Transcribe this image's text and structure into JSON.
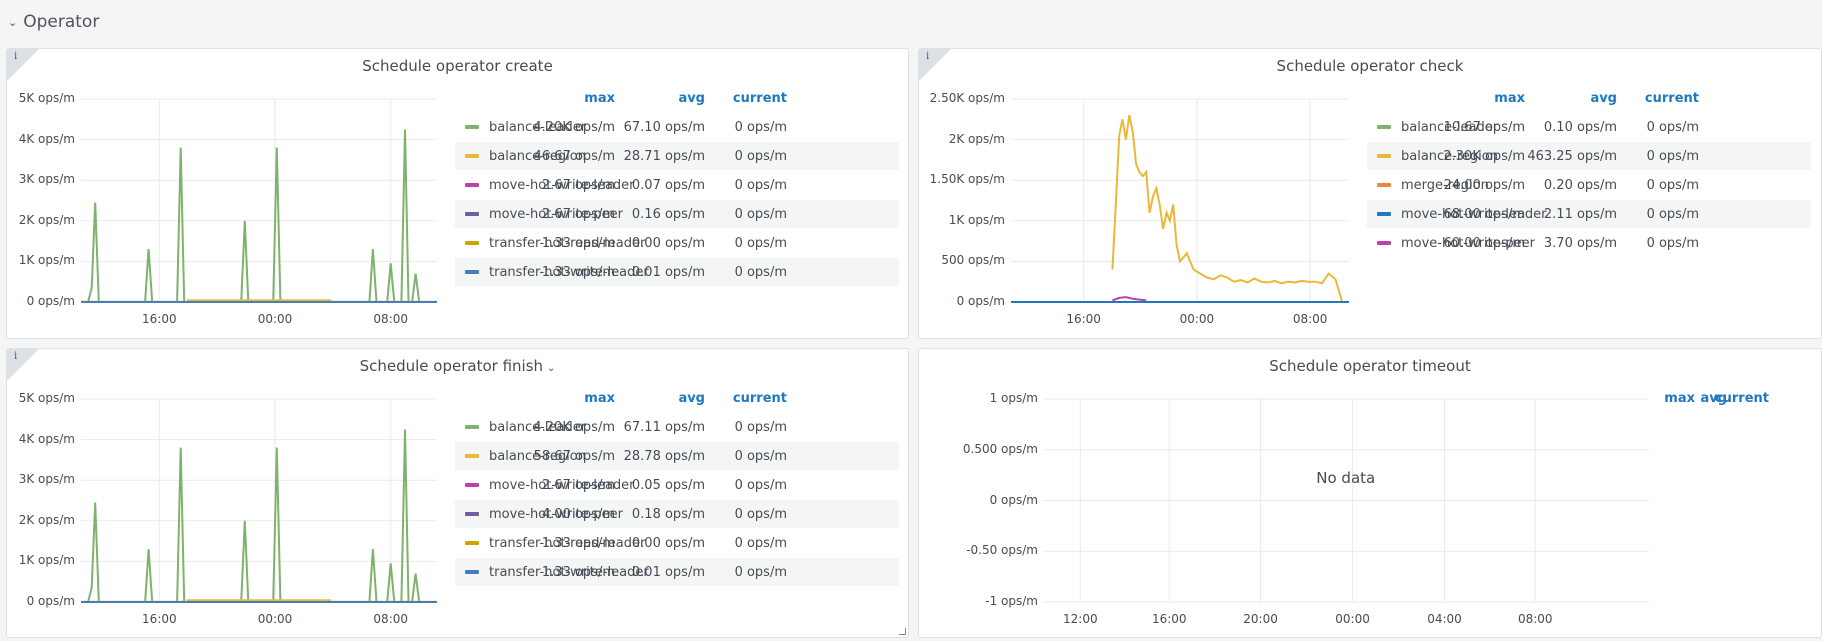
{
  "row": {
    "title": "Operator"
  },
  "panels": [
    {
      "id": "create",
      "title": "Schedule operator create",
      "yticks": [
        "5K ops/m",
        "4K ops/m",
        "3K ops/m",
        "2K ops/m",
        "1K ops/m",
        "0 ops/m"
      ],
      "xticks": [
        "16:00",
        "00:00",
        "08:00"
      ],
      "legend_headers": {
        "max": "max",
        "avg": "avg",
        "current": "current"
      },
      "legend": [
        {
          "name": "balance-leader",
          "color": "#7eb26d",
          "max": "4.20K ops/m",
          "avg": "67.10 ops/m",
          "current": "0 ops/m"
        },
        {
          "name": "balance-region",
          "color": "#eab839",
          "max": "46.67 ops/m",
          "avg": "28.71 ops/m",
          "current": "0 ops/m"
        },
        {
          "name": "move-hot-write-leader",
          "color": "#ba43a9",
          "max": "2.67 ops/m",
          "avg": "0.07 ops/m",
          "current": "0 ops/m"
        },
        {
          "name": "move-hot-write-peer",
          "color": "#705da0",
          "max": "2.67 ops/m",
          "avg": "0.16 ops/m",
          "current": "0 ops/m"
        },
        {
          "name": "transfer-hot-read-leader",
          "color": "#cca300",
          "max": "1.33 ops/m",
          "avg": "0.00 ops/m",
          "current": "0 ops/m"
        },
        {
          "name": "transfer-hot-write-leader",
          "color": "#447ebc",
          "max": "1.33 ops/m",
          "avg": "0.01 ops/m",
          "current": "0 ops/m"
        }
      ]
    },
    {
      "id": "check",
      "title": "Schedule operator check",
      "yticks": [
        "2.50K ops/m",
        "2K ops/m",
        "1.50K ops/m",
        "1K ops/m",
        "500 ops/m",
        "0 ops/m"
      ],
      "xticks": [
        "16:00",
        "00:00",
        "08:00"
      ],
      "legend_headers": {
        "max": "max",
        "avg": "avg",
        "current": "current"
      },
      "legend": [
        {
          "name": "balance-leader",
          "color": "#7eb26d",
          "max": "10.67 ops/m",
          "avg": "0.10 ops/m",
          "current": "0 ops/m"
        },
        {
          "name": "balance-region",
          "color": "#eab839",
          "max": "2.30K ops/m",
          "avg": "463.25 ops/m",
          "current": "0 ops/m"
        },
        {
          "name": "merge-region",
          "color": "#ef843c",
          "max": "24.00 ops/m",
          "avg": "0.20 ops/m",
          "current": "0 ops/m"
        },
        {
          "name": "move-hot-write-leader",
          "color": "#1f78c1",
          "max": "68.00 ops/m",
          "avg": "2.11 ops/m",
          "current": "0 ops/m"
        },
        {
          "name": "move-hot-write-peer",
          "color": "#ba43a9",
          "max": "60.00 ops/m",
          "avg": "3.70 ops/m",
          "current": "0 ops/m"
        }
      ]
    },
    {
      "id": "finish",
      "title": "Schedule operator finish",
      "yticks": [
        "5K ops/m",
        "4K ops/m",
        "3K ops/m",
        "2K ops/m",
        "1K ops/m",
        "0 ops/m"
      ],
      "xticks": [
        "16:00",
        "00:00",
        "08:00"
      ],
      "legend_headers": {
        "max": "max",
        "avg": "avg",
        "current": "current"
      },
      "legend": [
        {
          "name": "balance-leader",
          "color": "#7eb26d",
          "max": "4.20K ops/m",
          "avg": "67.11 ops/m",
          "current": "0 ops/m"
        },
        {
          "name": "balance-region",
          "color": "#eab839",
          "max": "58.67 ops/m",
          "avg": "28.78 ops/m",
          "current": "0 ops/m"
        },
        {
          "name": "move-hot-write-leader",
          "color": "#ba43a9",
          "max": "2.67 ops/m",
          "avg": "0.05 ops/m",
          "current": "0 ops/m"
        },
        {
          "name": "move-hot-write-peer",
          "color": "#705da0",
          "max": "4.00 ops/m",
          "avg": "0.18 ops/m",
          "current": "0 ops/m"
        },
        {
          "name": "transfer-hot-read-leader",
          "color": "#cca300",
          "max": "1.33 ops/m",
          "avg": "0.00 ops/m",
          "current": "0 ops/m"
        },
        {
          "name": "transfer-hot-write-leader",
          "color": "#447ebc",
          "max": "1.33 ops/m",
          "avg": "0.01 ops/m",
          "current": "0 ops/m"
        }
      ]
    },
    {
      "id": "timeout",
      "title": "Schedule operator timeout",
      "yticks": [
        "1 ops/m",
        "0.500 ops/m",
        "0 ops/m",
        "-0.50 ops/m",
        "-1 ops/m"
      ],
      "xticks": [
        "12:00",
        "16:00",
        "20:00",
        "00:00",
        "04:00",
        "08:00"
      ],
      "legend_headers": {
        "max": "max",
        "avg": "avg",
        "current": "current"
      },
      "nodata": "No data",
      "legend": []
    }
  ],
  "chart_data": [
    {
      "type": "line",
      "title": "Schedule operator create",
      "ylim": [
        0,
        5000
      ],
      "x_ticks": [
        "16:00",
        "00:00",
        "08:00"
      ],
      "series": [
        {
          "name": "balance-leader",
          "color": "#7eb26d",
          "x": [
            0.02,
            0.03,
            0.04,
            0.05,
            0.18,
            0.19,
            0.2,
            0.27,
            0.28,
            0.29,
            0.45,
            0.46,
            0.47,
            0.54,
            0.55,
            0.56,
            0.81,
            0.82,
            0.83,
            0.86,
            0.87,
            0.88,
            0.9,
            0.91,
            0.92,
            0.93,
            0.94,
            0.95
          ],
          "values": [
            0,
            350,
            2450,
            0,
            0,
            1300,
            0,
            0,
            3800,
            0,
            0,
            2000,
            0,
            0,
            3800,
            0,
            0,
            1300,
            0,
            0,
            950,
            0,
            0,
            4250,
            0,
            0,
            700,
            0
          ]
        },
        {
          "name": "balance-region",
          "color": "#eab839",
          "x": [
            0.0,
            0.3,
            0.3,
            0.7,
            0.7,
            1.0
          ],
          "values": [
            5,
            5,
            45,
            45,
            5,
            5
          ]
        },
        {
          "name": "transfer-hot-write-leader",
          "color": "#447ebc",
          "x": [
            0,
            1
          ],
          "values": [
            0,
            0
          ]
        }
      ]
    },
    {
      "type": "line",
      "title": "Schedule operator check",
      "ylim": [
        0,
        2500
      ],
      "x_ticks": [
        "16:00",
        "00:00",
        "08:00"
      ],
      "series": [
        {
          "name": "balance-region",
          "color": "#eab839",
          "x": [
            0.3,
            0.31,
            0.32,
            0.33,
            0.34,
            0.35,
            0.36,
            0.37,
            0.38,
            0.39,
            0.4,
            0.41,
            0.42,
            0.43,
            0.44,
            0.45,
            0.46,
            0.47,
            0.48,
            0.49,
            0.5,
            0.52,
            0.54,
            0.56,
            0.58,
            0.6,
            0.62,
            0.64,
            0.66,
            0.68,
            0.7,
            0.72,
            0.74,
            0.76,
            0.78,
            0.8,
            0.82,
            0.84,
            0.86,
            0.88,
            0.9,
            0.92,
            0.94,
            0.96,
            0.98
          ],
          "values": [
            400,
            1200,
            2050,
            2250,
            2000,
            2300,
            2100,
            1700,
            1600,
            1550,
            1600,
            1100,
            1300,
            1400,
            1200,
            900,
            1100,
            1000,
            1200,
            700,
            500,
            600,
            400,
            350,
            300,
            280,
            330,
            300,
            250,
            270,
            240,
            290,
            250,
            240,
            260,
            230,
            250,
            240,
            260,
            250,
            250,
            230,
            350,
            280,
            0
          ]
        },
        {
          "name": "move-hot-write-peer",
          "color": "#ba43a9",
          "x": [
            0.3,
            0.32,
            0.34,
            0.36,
            0.38,
            0.4
          ],
          "values": [
            20,
            50,
            60,
            40,
            30,
            20
          ]
        },
        {
          "name": "move-hot-write-leader",
          "color": "#1f78c1",
          "x": [
            0,
            1
          ],
          "values": [
            0,
            0
          ]
        }
      ]
    },
    {
      "type": "line",
      "title": "Schedule operator finish",
      "ylim": [
        0,
        5000
      ],
      "x_ticks": [
        "16:00",
        "00:00",
        "08:00"
      ],
      "series": [
        {
          "name": "balance-leader",
          "color": "#7eb26d",
          "x": [
            0.02,
            0.03,
            0.04,
            0.05,
            0.18,
            0.19,
            0.2,
            0.27,
            0.28,
            0.29,
            0.45,
            0.46,
            0.47,
            0.54,
            0.55,
            0.56,
            0.81,
            0.82,
            0.83,
            0.86,
            0.87,
            0.88,
            0.9,
            0.91,
            0.92,
            0.93,
            0.94,
            0.95
          ],
          "values": [
            0,
            350,
            2450,
            0,
            0,
            1300,
            0,
            0,
            3800,
            0,
            0,
            2000,
            0,
            0,
            3800,
            0,
            0,
            1300,
            0,
            0,
            950,
            0,
            0,
            4250,
            0,
            0,
            700,
            0
          ]
        },
        {
          "name": "balance-region",
          "color": "#eab839",
          "x": [
            0.0,
            0.3,
            0.3,
            0.7,
            0.7,
            1.0
          ],
          "values": [
            5,
            5,
            45,
            45,
            5,
            5
          ]
        },
        {
          "name": "transfer-hot-write-leader",
          "color": "#447ebc",
          "x": [
            0,
            1
          ],
          "values": [
            0,
            0
          ]
        }
      ]
    },
    {
      "type": "line",
      "title": "Schedule operator timeout",
      "ylim": [
        -1,
        1
      ],
      "x_ticks": [
        "12:00",
        "16:00",
        "20:00",
        "00:00",
        "04:00",
        "08:00"
      ],
      "series": []
    }
  ]
}
